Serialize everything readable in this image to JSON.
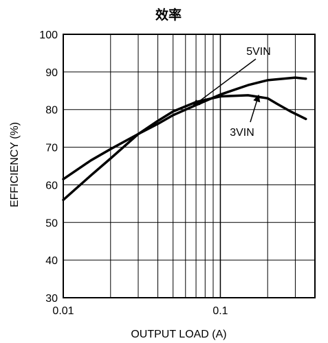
{
  "chart_data": {
    "type": "line",
    "title": "效率",
    "xlabel": "OUTPUT LOAD (A)",
    "ylabel": "EFFICIENCY (%)",
    "x_scale": "log",
    "xlim": [
      0.01,
      0.4
    ],
    "ylim": [
      30,
      100
    ],
    "grid": true,
    "x_ticks": [
      0.01,
      0.1
    ],
    "x_tick_labels": [
      "0.01",
      "0.1"
    ],
    "y_ticks": [
      30,
      40,
      50,
      60,
      70,
      80,
      90,
      100
    ],
    "y_tick_labels": [
      "30",
      "40",
      "50",
      "60",
      "70",
      "80",
      "90",
      "100"
    ],
    "series": [
      {
        "name": "5VIN",
        "x": [
          0.01,
          0.015,
          0.02,
          0.03,
          0.04,
          0.05,
          0.07,
          0.1,
          0.15,
          0.2,
          0.3,
          0.35
        ],
        "y": [
          61.5,
          66.5,
          69.5,
          73.5,
          76.2,
          78.5,
          81.2,
          84.0,
          86.5,
          87.8,
          88.5,
          88.2
        ]
      },
      {
        "name": "3VIN",
        "x": [
          0.01,
          0.015,
          0.02,
          0.03,
          0.04,
          0.05,
          0.07,
          0.1,
          0.15,
          0.2,
          0.23,
          0.28,
          0.35
        ],
        "y": [
          56.0,
          62.5,
          67.0,
          73.5,
          77.0,
          79.5,
          82.0,
          83.5,
          83.8,
          83.0,
          81.5,
          79.5,
          77.5
        ]
      }
    ],
    "annotations": [
      {
        "text": "5VIN",
        "target_series": "5VIN"
      },
      {
        "text": "3VIN",
        "target_series": "3VIN"
      }
    ]
  }
}
